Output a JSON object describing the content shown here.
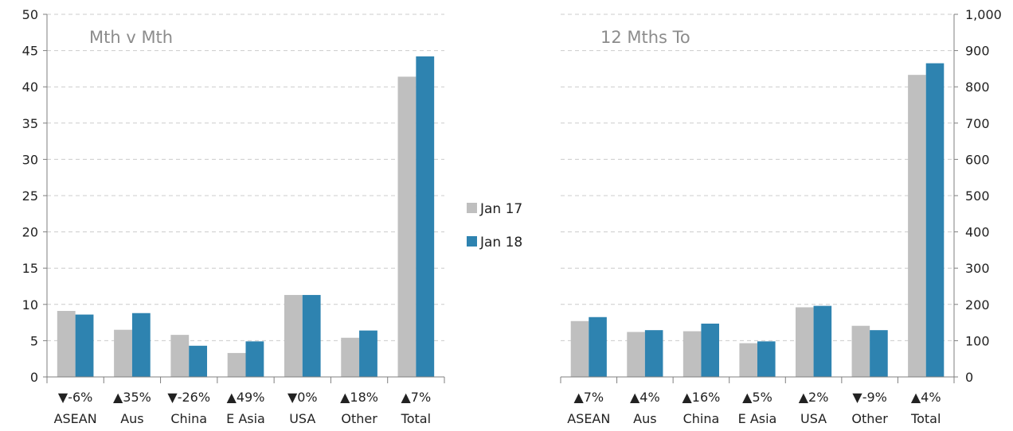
{
  "title": "",
  "legend": [
    {
      "name": "Jan 17",
      "color": "#bfbfbf"
    },
    {
      "name": "Jan 18",
      "color": "#2e83b0"
    }
  ],
  "chart_data": [
    {
      "type": "bar",
      "title": "Mth v Mth",
      "categories": [
        "ASEAN",
        "Aus",
        "China",
        "E Asia",
        "USA",
        "Other",
        "Total"
      ],
      "change_labels": [
        "▼-6%",
        "▲35%",
        "▼-26%",
        "▲49%",
        "▼0%",
        "▲18%",
        "▲7%"
      ],
      "series": [
        {
          "name": "Jan 17",
          "values": [
            9.1,
            6.5,
            5.8,
            3.3,
            11.3,
            5.4,
            41.4
          ]
        },
        {
          "name": "Jan 18",
          "values": [
            8.6,
            8.8,
            4.3,
            4.9,
            11.3,
            6.4,
            44.2
          ]
        }
      ],
      "ylim": [
        0,
        50
      ],
      "yticks": [
        "0",
        "5",
        "10",
        "15",
        "20",
        "25",
        "30",
        "35",
        "40",
        "45",
        "50"
      ],
      "grid": true
    },
    {
      "type": "bar",
      "title": "12 Mths To",
      "categories": [
        "ASEAN",
        "Aus",
        "China",
        "E Asia",
        "USA",
        "Other",
        "Total"
      ],
      "change_labels": [
        "▲7%",
        "▲4%",
        "▲16%",
        "▲5%",
        "▲2%",
        "▼-9%",
        "▲4%"
      ],
      "series": [
        {
          "name": "Jan 17",
          "values": [
            154,
            124,
            126,
            93,
            192,
            141,
            833
          ]
        },
        {
          "name": "Jan 18",
          "values": [
            165,
            129,
            147,
            98,
            196,
            129,
            865
          ]
        }
      ],
      "ylim": [
        0,
        1000
      ],
      "yticks": [
        "0",
        "100",
        "200",
        "300",
        "400",
        "500",
        "600",
        "700",
        "800",
        "900",
        "1,000"
      ],
      "grid": true
    }
  ]
}
